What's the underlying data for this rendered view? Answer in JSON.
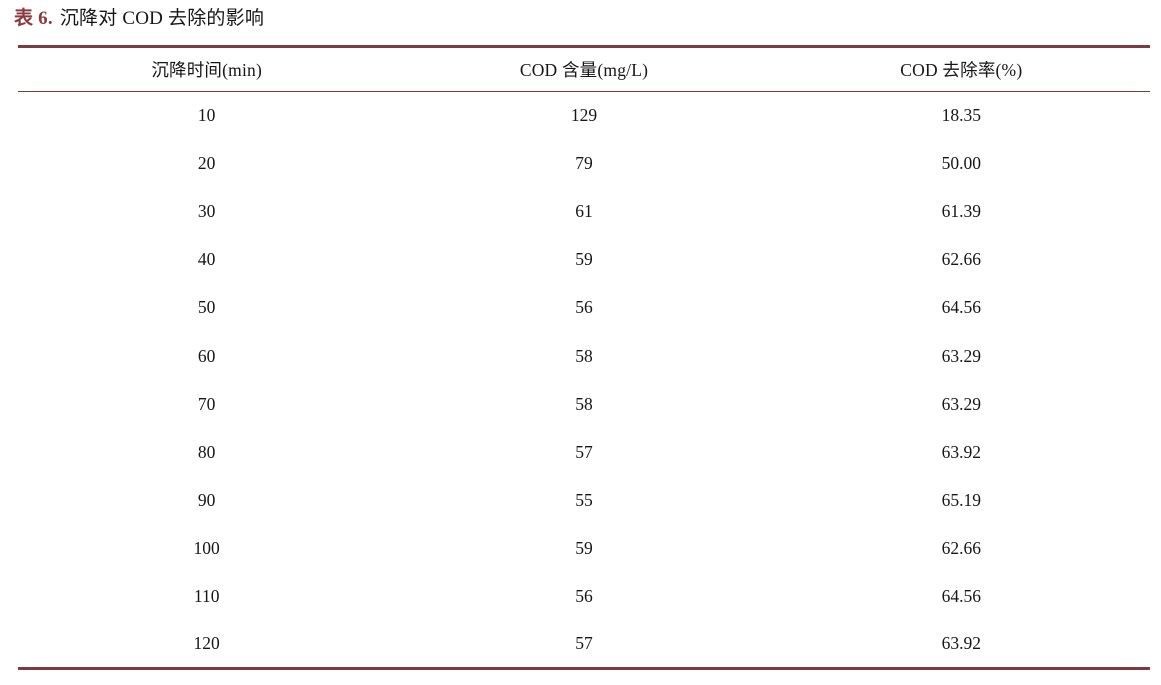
{
  "caption": {
    "label": "表 6.",
    "text": "沉降对 COD 去除的影响"
  },
  "colors": {
    "caption_label": "#8b3a3e",
    "rule": "#7d3b41",
    "text": "#161616",
    "background": "#ffffff"
  },
  "table": {
    "columns": [
      "沉降时间(min)",
      "COD 含量(mg/L)",
      "COD 去除率(%)"
    ],
    "rows": [
      [
        "10",
        "129",
        "18.35"
      ],
      [
        "20",
        "79",
        "50.00"
      ],
      [
        "30",
        "61",
        "61.39"
      ],
      [
        "40",
        "59",
        "62.66"
      ],
      [
        "50",
        "56",
        "64.56"
      ],
      [
        "60",
        "58",
        "63.29"
      ],
      [
        "70",
        "58",
        "63.29"
      ],
      [
        "80",
        "57",
        "63.92"
      ],
      [
        "90",
        "55",
        "65.19"
      ],
      [
        "100",
        "59",
        "62.66"
      ],
      [
        "110",
        "56",
        "64.56"
      ],
      [
        "120",
        "57",
        "63.92"
      ]
    ]
  },
  "chart_data": {
    "type": "table",
    "title": "表 6. 沉降对 COD 去除的影响",
    "columns": [
      "沉降时间(min)",
      "COD 含量(mg/L)",
      "COD 去除率(%)"
    ],
    "rows": [
      [
        10,
        129,
        18.35
      ],
      [
        20,
        79,
        50.0
      ],
      [
        30,
        61,
        61.39
      ],
      [
        40,
        59,
        62.66
      ],
      [
        50,
        56,
        64.56
      ],
      [
        60,
        58,
        63.29
      ],
      [
        70,
        58,
        63.29
      ],
      [
        80,
        57,
        63.92
      ],
      [
        90,
        55,
        65.19
      ],
      [
        100,
        59,
        62.66
      ],
      [
        110,
        56,
        64.56
      ],
      [
        120,
        57,
        63.92
      ]
    ]
  }
}
